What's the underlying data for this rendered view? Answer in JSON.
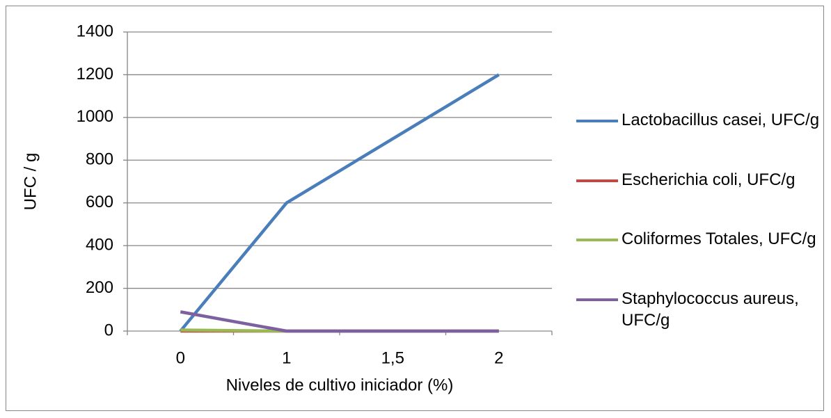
{
  "chart_data": {
    "type": "line",
    "xlabel": "Niveles de cultivo iniciador (%)",
    "ylabel": "UFC / g",
    "categories": [
      "0",
      "1",
      "1,5",
      "2"
    ],
    "series": [
      {
        "name": "Lactobacillus casei, UFC/g",
        "color": "#4a7ebb",
        "values": [
          0,
          600,
          900,
          1200
        ]
      },
      {
        "name": "Escherichia coli, UFC/g",
        "color": "#be4b48",
        "values": [
          0,
          0,
          0,
          0
        ]
      },
      {
        "name": "Coliformes Totales, UFC/g",
        "color": "#98b954",
        "values": [
          5,
          0,
          0,
          0
        ]
      },
      {
        "name": "Staphylococcus aureus, UFC/g",
        "color": "#7d60a0",
        "values": [
          90,
          0,
          0,
          0
        ]
      }
    ],
    "ylim": [
      0,
      1400
    ],
    "yticks": [
      0,
      200,
      400,
      600,
      800,
      1000,
      1200,
      1400
    ],
    "grid": true,
    "legend": "right"
  }
}
